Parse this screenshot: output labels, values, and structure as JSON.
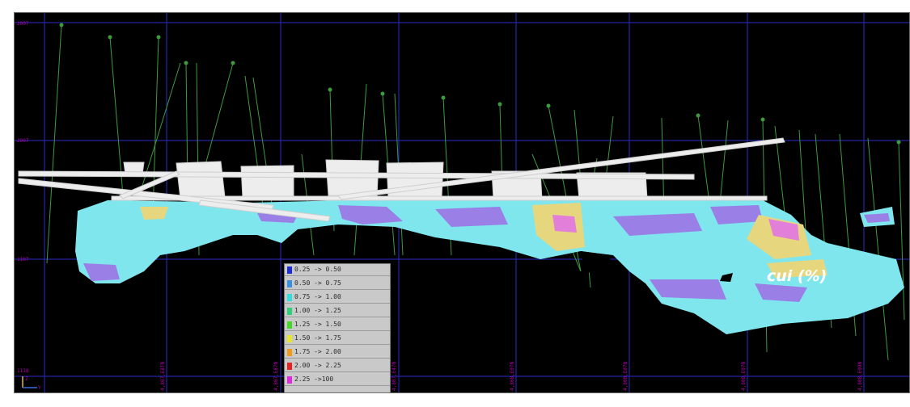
{
  "variable_label": "cui (%)",
  "legend": {
    "items": [
      {
        "label": "0.25 -> 0.50",
        "color": "#1f2bd6"
      },
      {
        "label": "0.50 -> 0.75",
        "color": "#3a8fe0"
      },
      {
        "label": "0.75 -> 1.00",
        "color": "#35dede"
      },
      {
        "label": "1.00 -> 1.25",
        "color": "#2fd07a"
      },
      {
        "label": "1.25 -> 1.50",
        "color": "#44d92a"
      },
      {
        "label": "1.50 -> 1.75",
        "color": "#e6e62a"
      },
      {
        "label": "1.75 -> 2.00",
        "color": "#f29a1a"
      },
      {
        "label": "2.00 -> 2.25",
        "color": "#e62222"
      },
      {
        "label": "2.25 ->100",
        "color": "#e02ae0"
      }
    ]
  },
  "grid": {
    "elevation_labels": [
      "2007",
      "2007",
      "1107",
      "1118"
    ],
    "easting_labels": [
      "4,807,E8TN",
      "4,807,E87N",
      "4,807,E47N",
      "4,808,E07N",
      "4,808,E07N",
      "4,808,E07N",
      "4,808,E09N"
    ]
  },
  "axis_triad": {
    "z_label": "Z",
    "y_label": "Y"
  },
  "colors": {
    "background": "#000000",
    "grid_line": "#2b2bc8",
    "drillhole": "#3f9a3f",
    "block_base": "#7fe6ee",
    "block_low": "#9a7fe6",
    "block_mid": "#e6d77f",
    "block_high": "#e27fd8"
  }
}
